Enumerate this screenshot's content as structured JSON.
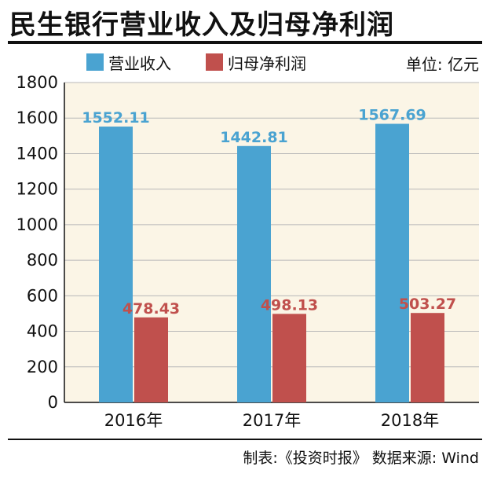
{
  "title": "民生银行营业收入及归母净利润",
  "unit": "单位: 亿元",
  "source": "制表:《投资时报》 数据来源: Wind",
  "colors": {
    "revenue": "#4aa3d1",
    "profit": "#c0504d",
    "plot_bg": "#fbf5e6",
    "grid": "#b8b8b8"
  },
  "chart_data": {
    "type": "bar",
    "categories": [
      "2016年",
      "2017年",
      "2018年"
    ],
    "series": [
      {
        "name": "营业收入",
        "values": [
          1552.11,
          1442.81,
          1567.69
        ],
        "labels": [
          "1552.11",
          "1442.81",
          "1567.69"
        ]
      },
      {
        "name": "归母净利润",
        "values": [
          478.43,
          498.13,
          503.27
        ],
        "labels": [
          "478.43",
          "498.13",
          "503.27"
        ]
      }
    ],
    "ylim": [
      0,
      1800
    ],
    "yticks": [
      "0",
      "200",
      "400",
      "600",
      "800",
      "1000",
      "1200",
      "1400",
      "1600",
      "1800"
    ],
    "grid": true,
    "legend_position": "top-left"
  }
}
